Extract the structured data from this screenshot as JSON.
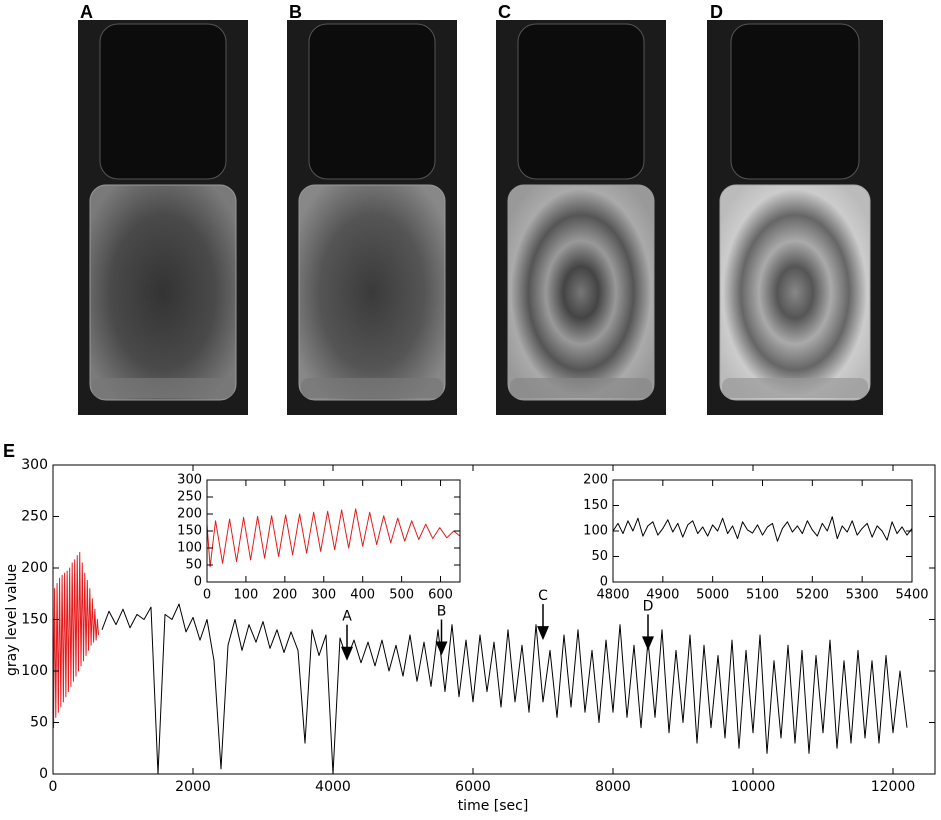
{
  "images": [
    {
      "label": "A"
    },
    {
      "label": "B"
    },
    {
      "label": "C"
    },
    {
      "label": "D"
    }
  ],
  "chart_data": [
    {
      "type": "line",
      "panel_label": "E",
      "x_label": "time [sec]",
      "y_label": "gray level value",
      "xlim": [
        0,
        12600
      ],
      "xticks": [
        0,
        2000,
        4000,
        6000,
        8000,
        10000,
        12000
      ],
      "ylim": [
        0,
        300
      ],
      "yticks": [
        0,
        50,
        100,
        150,
        200,
        250,
        300
      ],
      "series": [
        {
          "color": "#e41a1c",
          "x": [
            0,
            8,
            22,
            40,
            58,
            76,
            94,
            112,
            130,
            148,
            166,
            184,
            202,
            220,
            238,
            256,
            274,
            292,
            310,
            328,
            346,
            364,
            382,
            400,
            418,
            436,
            454,
            472,
            490,
            508,
            526,
            544,
            562,
            580,
            598,
            616,
            634,
            650
          ],
          "values": [
            170,
            45,
            180,
            55,
            185,
            60,
            190,
            65,
            193,
            70,
            195,
            75,
            197,
            80,
            200,
            85,
            205,
            90,
            208,
            95,
            212,
            100,
            215,
            105,
            205,
            110,
            195,
            115,
            188,
            120,
            180,
            125,
            170,
            128,
            160,
            130,
            150,
            135
          ]
        },
        {
          "color": "#000000",
          "x": [
            700,
            800,
            900,
            1000,
            1100,
            1200,
            1300,
            1400,
            1500,
            1600,
            1700,
            1800,
            1900,
            2000,
            2100,
            2200,
            2300,
            2400,
            2500,
            2600,
            2700,
            2800,
            2900,
            3000,
            3100,
            3200,
            3300,
            3400,
            3500,
            3600,
            3700,
            3800,
            3900,
            4000,
            4100,
            4200,
            4300,
            4400,
            4500,
            4600,
            4700,
            4800,
            4900,
            5000,
            5100,
            5200,
            5300,
            5400,
            5500,
            5600,
            5700,
            5800,
            5900,
            6000,
            6100,
            6200,
            6300,
            6400,
            6500,
            6600,
            6700,
            6800,
            6900,
            7000,
            7100,
            7200,
            7300,
            7400,
            7500,
            7600,
            7700,
            7800,
            7900,
            8000,
            8100,
            8200,
            8300,
            8400,
            8500,
            8600,
            8700,
            8800,
            8900,
            9000,
            9100,
            9200,
            9300,
            9400,
            9500,
            9600,
            9700,
            9800,
            9900,
            10000,
            10100,
            10200,
            10300,
            10400,
            10500,
            10600,
            10700,
            10800,
            10900,
            11000,
            11100,
            11200,
            11300,
            11400,
            11500,
            11600,
            11700,
            11800,
            11900,
            12000,
            12100,
            12200
          ],
          "values": [
            140,
            158,
            145,
            160,
            142,
            155,
            150,
            162,
            0,
            155,
            150,
            165,
            138,
            152,
            130,
            150,
            110,
            5,
            125,
            150,
            120,
            145,
            128,
            148,
            122,
            140,
            118,
            138,
            120,
            30,
            140,
            115,
            135,
            0,
            132,
            112,
            130,
            108,
            128,
            105,
            130,
            100,
            125,
            95,
            135,
            90,
            128,
            85,
            140,
            80,
            145,
            75,
            130,
            70,
            135,
            80,
            128,
            65,
            140,
            70,
            125,
            60,
            145,
            70,
            120,
            55,
            135,
            65,
            140,
            60,
            120,
            50,
            130,
            60,
            145,
            55,
            125,
            45,
            130,
            55,
            140,
            40,
            120,
            50,
            135,
            30,
            125,
            45,
            115,
            35,
            130,
            25,
            120,
            40,
            135,
            20,
            110,
            35,
            125,
            30,
            120,
            20,
            115,
            40,
            130,
            25,
            110,
            30,
            120,
            35,
            110,
            30,
            115,
            40,
            100,
            45
          ]
        }
      ],
      "annotations": [
        {
          "text": "A",
          "x": 4200,
          "y": 110
        },
        {
          "text": "B",
          "x": 5550,
          "y": 115
        },
        {
          "text": "C",
          "x": 7000,
          "y": 130
        },
        {
          "text": "D",
          "x": 8500,
          "y": 120
        }
      ]
    },
    {
      "type": "line",
      "xlim": [
        0,
        650
      ],
      "xticks": [
        0,
        100,
        200,
        300,
        400,
        500,
        600
      ],
      "ylim": [
        0,
        300
      ],
      "yticks": [
        0,
        50,
        100,
        150,
        200,
        250,
        300
      ],
      "series": [
        {
          "color": "#e41a1c",
          "x": [
            0,
            8,
            22,
            40,
            58,
            76,
            94,
            112,
            130,
            148,
            166,
            184,
            202,
            220,
            238,
            256,
            274,
            292,
            310,
            328,
            346,
            364,
            382,
            400,
            418,
            436,
            454,
            472,
            490,
            508,
            526,
            544,
            562,
            580,
            598,
            616,
            634,
            650
          ],
          "values": [
            170,
            45,
            180,
            55,
            185,
            60,
            190,
            65,
            193,
            70,
            195,
            75,
            197,
            80,
            200,
            85,
            205,
            90,
            208,
            95,
            212,
            100,
            215,
            105,
            205,
            110,
            195,
            115,
            188,
            120,
            180,
            125,
            170,
            128,
            160,
            130,
            150,
            135
          ]
        }
      ]
    },
    {
      "type": "line",
      "xlim": [
        4800,
        5400
      ],
      "xticks": [
        4800,
        4900,
        5000,
        5100,
        5200,
        5300,
        5400
      ],
      "ylim": [
        0,
        200
      ],
      "yticks": [
        0,
        50,
        100,
        150,
        200
      ],
      "series": [
        {
          "color": "#000000",
          "x": [
            4800,
            4810,
            4820,
            4830,
            4840,
            4850,
            4860,
            4870,
            4880,
            4890,
            4900,
            4910,
            4920,
            4930,
            4940,
            4950,
            4960,
            4970,
            4980,
            4990,
            5000,
            5010,
            5020,
            5030,
            5040,
            5050,
            5060,
            5070,
            5080,
            5090,
            5100,
            5110,
            5120,
            5130,
            5140,
            5150,
            5160,
            5170,
            5180,
            5190,
            5200,
            5210,
            5220,
            5230,
            5240,
            5250,
            5260,
            5270,
            5280,
            5290,
            5300,
            5310,
            5320,
            5330,
            5340,
            5350,
            5360,
            5370,
            5380,
            5390,
            5400
          ],
          "values": [
            100,
            115,
            95,
            120,
            100,
            125,
            90,
            110,
            118,
            92,
            105,
            122,
            98,
            115,
            88,
            112,
            120,
            95,
            108,
            90,
            112,
            100,
            125,
            95,
            110,
            85,
            118,
            102,
            96,
            112,
            92,
            108,
            115,
            80,
            105,
            118,
            98,
            110,
            95,
            120,
            102,
            90,
            115,
            100,
            128,
            85,
            110,
            98,
            120,
            92,
            105,
            115,
            88,
            110,
            100,
            82,
            118,
            95,
            108,
            92,
            105
          ]
        }
      ]
    }
  ]
}
